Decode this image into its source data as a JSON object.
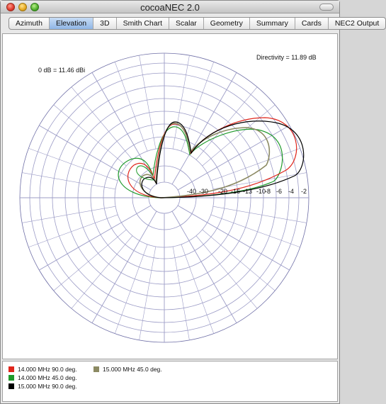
{
  "window": {
    "title": "cocoaNEC 2.0"
  },
  "tabs": [
    {
      "label": "Azimuth",
      "active": false
    },
    {
      "label": "Elevation",
      "active": true
    },
    {
      "label": "3D",
      "active": false
    },
    {
      "label": "Smith Chart",
      "active": false
    },
    {
      "label": "Scalar",
      "active": false
    },
    {
      "label": "Geometry",
      "active": false
    },
    {
      "label": "Summary",
      "active": false
    },
    {
      "label": "Cards",
      "active": false
    },
    {
      "label": "NEC2 Output",
      "active": false
    }
  ],
  "plot": {
    "directivity": "Directivity = 11.89 dB",
    "reference": "0 dB = 11.46 dBi",
    "ring_labels": [
      "-40",
      "-30",
      "-20",
      "-16",
      "-13",
      "-10",
      "-8",
      "-6",
      "-4",
      "-2"
    ]
  },
  "legend": [
    {
      "label": "14.000 MHz 90.0 deg.",
      "color": "#e0261c"
    },
    {
      "label": "14.000 MHz 45.0 deg.",
      "color": "#1f9a2b"
    },
    {
      "label": "15.000 MHz 90.0 deg.",
      "color": "#000000"
    },
    {
      "label": "15.000 MHz 45.0 deg.",
      "color": "#8c8a63"
    }
  ]
}
